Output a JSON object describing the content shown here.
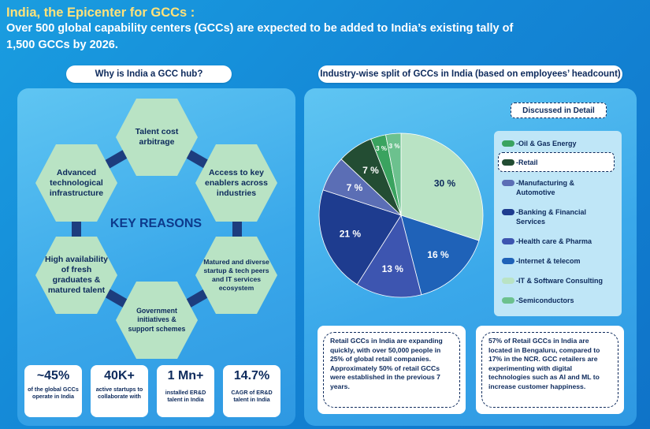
{
  "header": {
    "title": "India, the Epicenter for GCCs :",
    "subtitle_line1": "Over 500 global capability centers (GCCs) are expected to be added to India’s existing tally of",
    "subtitle_line2": "1,500 GCCs by 2026."
  },
  "left": {
    "pill": "Why is India a GCC hub?",
    "center_label": "KEY REASONS",
    "hexes": [
      {
        "label": "Talent cost arbitrage"
      },
      {
        "label": "Access to key enablers across industries"
      },
      {
        "label": "Matured and diverse startup & tech peers and IT services ecosystem"
      },
      {
        "label": "Government initiatives & support schemes"
      },
      {
        "label": "High availability of fresh graduates & matured talent"
      },
      {
        "label": "Advanced technological infrastructure"
      }
    ],
    "stats": [
      {
        "value": "~45%",
        "label": "of the global GCCs operate in India"
      },
      {
        "value": "40K+",
        "label": "active startups to collaborate with"
      },
      {
        "value": "1 Mn+",
        "label": "installed ER&D talent in India"
      },
      {
        "value": "14.7%",
        "label": "CAGR of ER&D talent in India"
      }
    ]
  },
  "right": {
    "pill": "Industry-wise split of GCCs in India (based on employees’ headcount)",
    "legend_title": "Discussed in Detail",
    "legend": [
      {
        "label": "-Oil & Gas Energy",
        "color": "#3aa35f"
      },
      {
        "label": "-Retail",
        "color": "#234d33"
      },
      {
        "label": "-Manufacturing & Automotive",
        "color": "#5b6eb5"
      },
      {
        "label": "-Banking & Financial Services",
        "color": "#1e3c8f"
      },
      {
        "label": "-Health care & Pharma",
        "color": "#3d55b0"
      },
      {
        "label": "-Internet & telecom",
        "color": "#1f62b8"
      },
      {
        "label": "-IT & Software Consulting",
        "color": "#b9e3c4"
      },
      {
        "label": "-Semiconductors",
        "color": "#6cc18e"
      }
    ],
    "note_left": "Retail GCCs in India are expanding quickly, with over 50,000 people in 25% of global retail companies. Approximately 50% of retail GCCs were established in the previous 7 years.",
    "note_right": "57% of Retail GCCs in India are located in Bengaluru, compared to 17% in the NCR. GCC retailers are experimenting with digital technologies such as AI and ML to increase customer happiness."
  },
  "chart_data": {
    "type": "pie",
    "title": "Industry-wise split of GCCs in India (based on employees’ headcount)",
    "slices": [
      {
        "name": "IT & Software Consulting",
        "value": 30,
        "label": "30 %",
        "color": "#b9e3c4",
        "text_color": "#0d2a5c"
      },
      {
        "name": "Internet & telecom",
        "value": 16,
        "label": "16 %",
        "color": "#1f62b8",
        "text_color": "#ffffff"
      },
      {
        "name": "Health care & Pharma",
        "value": 13,
        "label": "13 %",
        "color": "#3d55b0",
        "text_color": "#ffffff"
      },
      {
        "name": "Banking & Financial Services",
        "value": 21,
        "label": "21 %",
        "color": "#1e3c8f",
        "text_color": "#ffffff"
      },
      {
        "name": "Manufacturing & Automotive",
        "value": 7,
        "label": "7 %",
        "color": "#5b6eb5",
        "text_color": "#ffffff"
      },
      {
        "name": "Retail",
        "value": 7,
        "label": "7 %",
        "color": "#234d33",
        "text_color": "#ffffff"
      },
      {
        "name": "Oil & Gas Energy",
        "value": 3,
        "label": "3 %",
        "color": "#3aa35f",
        "text_color": "#ffffff"
      },
      {
        "name": "Semiconductors",
        "value": 3,
        "label": "3 %",
        "color": "#6cc18e",
        "text_color": "#ffffff"
      }
    ]
  }
}
